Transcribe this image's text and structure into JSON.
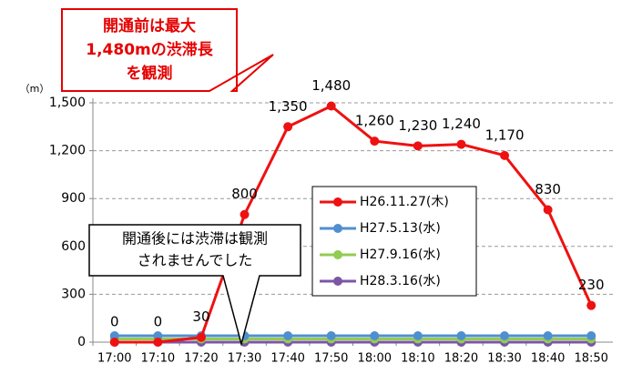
{
  "chart_data": {
    "type": "line",
    "y_unit": "（m）",
    "categories": [
      "17:00",
      "17:10",
      "17:20",
      "17:30",
      "17:40",
      "17:50",
      "18:00",
      "18:10",
      "18:20",
      "18:30",
      "18:40",
      "18:50"
    ],
    "series": [
      {
        "name": "H26.11.27(木)",
        "color": "#ee1111",
        "values": [
          0,
          0,
          30,
          800,
          1350,
          1480,
          1260,
          1230,
          1240,
          1170,
          830,
          230
        ],
        "value_labels": [
          "0",
          "0",
          "30",
          "800",
          "1,350",
          "1,480",
          "1,260",
          "1,230",
          "1,240",
          "1,170",
          "830",
          "230"
        ]
      },
      {
        "name": "H27.5.13(水)",
        "color": "#4f8fd0",
        "values": [
          40,
          40,
          40,
          40,
          40,
          40,
          40,
          40,
          40,
          40,
          40,
          40
        ]
      },
      {
        "name": "H27.9.16(水)",
        "color": "#92cc50",
        "values": [
          20,
          20,
          20,
          20,
          20,
          20,
          20,
          20,
          20,
          20,
          20,
          20
        ]
      },
      {
        "name": "H28.3.16(水)",
        "color": "#7c55a6",
        "values": [
          0,
          0,
          0,
          0,
          0,
          0,
          0,
          0,
          0,
          0,
          0,
          0
        ]
      }
    ],
    "ylim": [
      0,
      1500
    ],
    "yticks": [
      0,
      300,
      600,
      900,
      {
        "value": 1200,
        "label": "1,200"
      },
      {
        "value": 1500,
        "label": "1,500"
      }
    ],
    "grid": true,
    "annotations": [
      {
        "lines": [
          "開通前は最大",
          "1,480mの渋滞長",
          "を観測"
        ],
        "color": "#e60000"
      },
      {
        "lines": [
          "開通後には渋滞は観測",
          "されませんでした"
        ],
        "color": "#000000"
      }
    ]
  }
}
